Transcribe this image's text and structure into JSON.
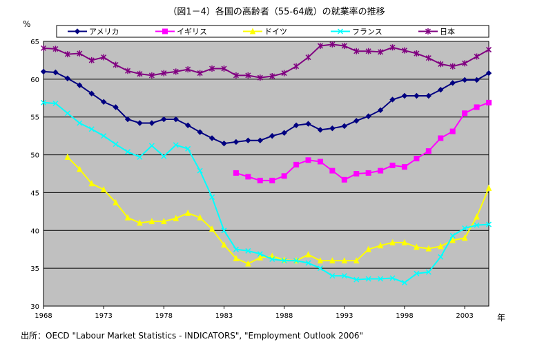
{
  "chart_data": {
    "type": "line",
    "title": "（図1－4）各国の高齢者（55-64歳）の就業率の推移",
    "ylabel": "%",
    "xlabel": "年",
    "source": "出所：OECD \"Labour Market Statistics - INDICATORS\", \"Employment Outlook 2006\"",
    "xlim": [
      1968,
      2005
    ],
    "ylim": [
      30,
      65
    ],
    "x_ticks": [
      1968,
      1973,
      1978,
      1983,
      1988,
      1993,
      1998,
      2003
    ],
    "y_ticks": [
      30,
      35,
      40,
      45,
      50,
      55,
      60,
      65
    ],
    "grid": true,
    "legend_position": "top",
    "series": [
      {
        "name": "アメリカ",
        "color": "#000080",
        "marker": "diamond",
        "x": [
          1968,
          1969,
          1970,
          1971,
          1972,
          1973,
          1974,
          1975,
          1976,
          1977,
          1978,
          1979,
          1980,
          1981,
          1982,
          1983,
          1984,
          1985,
          1986,
          1987,
          1988,
          1989,
          1990,
          1991,
          1992,
          1993,
          1994,
          1995,
          1996,
          1997,
          1998,
          1999,
          2000,
          2001,
          2002,
          2003,
          2004,
          2005
        ],
        "values": [
          61.0,
          60.9,
          60.1,
          59.2,
          58.1,
          57.0,
          56.3,
          54.7,
          54.2,
          54.2,
          54.7,
          54.7,
          53.9,
          53.0,
          52.2,
          51.5,
          51.7,
          51.9,
          51.9,
          52.5,
          52.9,
          53.9,
          54.1,
          53.3,
          53.5,
          53.8,
          54.5,
          55.1,
          55.9,
          57.3,
          57.8,
          57.8,
          57.8,
          58.6,
          59.5,
          59.9,
          59.9,
          60.8
        ]
      },
      {
        "name": "イギリス",
        "color": "#ff00ff",
        "marker": "square",
        "x": [
          1984,
          1985,
          1986,
          1987,
          1988,
          1989,
          1990,
          1991,
          1992,
          1993,
          1994,
          1995,
          1996,
          1997,
          1998,
          1999,
          2000,
          2001,
          2002,
          2003,
          2004,
          2005
        ],
        "values": [
          47.6,
          47.1,
          46.6,
          46.6,
          47.2,
          48.7,
          49.3,
          49.1,
          47.9,
          46.7,
          47.5,
          47.6,
          47.9,
          48.6,
          48.4,
          49.5,
          50.5,
          52.2,
          53.1,
          55.5,
          56.3,
          56.9
        ]
      },
      {
        "name": "ドイツ",
        "color": "#ffff00",
        "marker": "triangle",
        "x": [
          1970,
          1971,
          1972,
          1973,
          1974,
          1975,
          1976,
          1977,
          1978,
          1979,
          1980,
          1981,
          1982,
          1983,
          1984,
          1985,
          1986,
          1987,
          1988,
          1989,
          1990,
          1991,
          1992,
          1993,
          1994,
          1995,
          1996,
          1997,
          1998,
          1999,
          2000,
          2001,
          2002,
          2003,
          2004,
          2005
        ],
        "values": [
          49.7,
          48.1,
          46.2,
          45.4,
          43.7,
          41.7,
          41.0,
          41.2,
          41.2,
          41.6,
          42.3,
          41.7,
          40.2,
          38.1,
          36.3,
          35.6,
          36.4,
          36.6,
          36.1,
          36.0,
          36.8,
          36.0,
          36.0,
          36.0,
          36.0,
          37.5,
          38.0,
          38.4,
          38.4,
          37.8,
          37.6,
          37.9,
          38.7,
          39.0,
          41.8,
          45.6
        ]
      },
      {
        "name": "フランス",
        "color": "#00ffff",
        "marker": "x",
        "x": [
          1968,
          1969,
          1970,
          1971,
          1972,
          1973,
          1974,
          1975,
          1976,
          1977,
          1978,
          1979,
          1980,
          1981,
          1982,
          1983,
          1984,
          1985,
          1986,
          1987,
          1988,
          1989,
          1990,
          1991,
          1992,
          1993,
          1994,
          1995,
          1996,
          1997,
          1998,
          1999,
          2000,
          2001,
          2002,
          2003,
          2004,
          2005
        ],
        "values": [
          56.9,
          56.8,
          55.5,
          54.2,
          53.4,
          52.5,
          51.4,
          50.4,
          49.7,
          51.2,
          49.8,
          51.3,
          50.8,
          47.9,
          44.4,
          40.0,
          37.5,
          37.3,
          36.9,
          36.2,
          36.0,
          36.0,
          35.7,
          35.0,
          34.0,
          34.0,
          33.5,
          33.6,
          33.6,
          33.7,
          33.1,
          34.3,
          34.5,
          36.5,
          39.3,
          40.3,
          40.7,
          40.8
        ]
      },
      {
        "name": "日本",
        "color": "#800080",
        "marker": "star",
        "x": [
          1968,
          1969,
          1970,
          1971,
          1972,
          1973,
          1974,
          1975,
          1976,
          1977,
          1978,
          1979,
          1980,
          1981,
          1982,
          1983,
          1984,
          1985,
          1986,
          1987,
          1988,
          1989,
          1990,
          1991,
          1992,
          1993,
          1994,
          1995,
          1996,
          1997,
          1998,
          1999,
          2000,
          2001,
          2002,
          2003,
          2004,
          2005
        ],
        "values": [
          64.1,
          64.0,
          63.3,
          63.4,
          62.5,
          62.9,
          61.9,
          61.1,
          60.7,
          60.5,
          60.8,
          61.0,
          61.3,
          60.8,
          61.4,
          61.4,
          60.5,
          60.5,
          60.2,
          60.4,
          60.8,
          61.7,
          62.9,
          64.4,
          64.6,
          64.4,
          63.7,
          63.7,
          63.6,
          64.2,
          63.8,
          63.4,
          62.8,
          62.0,
          61.7,
          62.1,
          63.0,
          63.9
        ]
      }
    ]
  }
}
